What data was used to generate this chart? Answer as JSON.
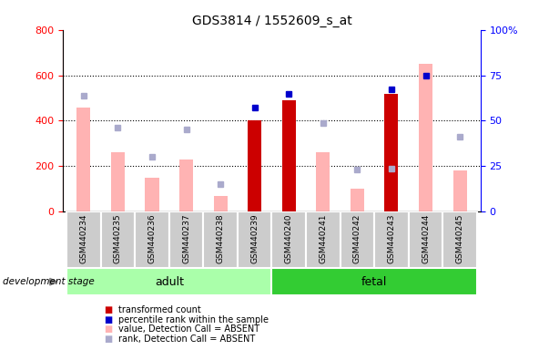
{
  "title": "GDS3814 / 1552609_s_at",
  "categories": [
    "GSM440234",
    "GSM440235",
    "GSM440236",
    "GSM440237",
    "GSM440238",
    "GSM440239",
    "GSM440240",
    "GSM440241",
    "GSM440242",
    "GSM440243",
    "GSM440244",
    "GSM440245"
  ],
  "transformed_count": [
    null,
    null,
    null,
    null,
    null,
    400,
    490,
    null,
    null,
    520,
    null,
    null
  ],
  "percentile_rank": [
    null,
    null,
    null,
    null,
    null,
    460,
    520,
    null,
    null,
    540,
    600,
    null
  ],
  "value_absent": [
    460,
    260,
    150,
    230,
    70,
    null,
    null,
    260,
    100,
    null,
    650,
    180
  ],
  "rank_absent": [
    510,
    370,
    240,
    360,
    120,
    null,
    null,
    390,
    185,
    190,
    null,
    330
  ],
  "ylim_left": [
    0,
    800
  ],
  "ylim_right": [
    0,
    100
  ],
  "yticks_left": [
    0,
    200,
    400,
    600,
    800
  ],
  "yticks_right": [
    0,
    25,
    50,
    75,
    100
  ],
  "color_dark_red": "#cc0000",
  "color_dark_blue": "#0000cc",
  "color_pink": "#ffb3b3",
  "color_light_blue": "#aaaacc",
  "color_adult_bg": "#aaffaa",
  "color_fetal_bg": "#33cc33",
  "color_gray_box": "#cccccc",
  "color_gray_border": "#888888",
  "legend_labels": [
    "transformed count",
    "percentile rank within the sample",
    "value, Detection Call = ABSENT",
    "rank, Detection Call = ABSENT"
  ],
  "adult_range": [
    0,
    5
  ],
  "fetal_range": [
    6,
    11
  ]
}
